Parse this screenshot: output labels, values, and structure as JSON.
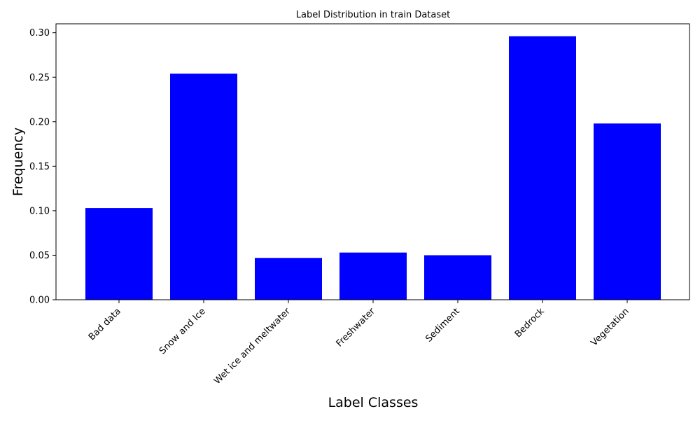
{
  "chart_data": {
    "type": "bar",
    "title": "Label Distribution in train Dataset",
    "xlabel": "Label Classes",
    "ylabel": "Frequency",
    "categories": [
      "Bad data",
      "Snow and Ice",
      "Wet ice and meltwater",
      "Freshwater",
      "Sediment",
      "Bedrock",
      "Vegetation"
    ],
    "values": [
      0.103,
      0.254,
      0.047,
      0.053,
      0.05,
      0.296,
      0.198
    ],
    "ylim": [
      0,
      0.31
    ],
    "yticks": [
      "0.00",
      "0.05",
      "0.10",
      "0.15",
      "0.20",
      "0.25",
      "0.30"
    ],
    "bar_color": "#0000ff",
    "grid": false
  }
}
